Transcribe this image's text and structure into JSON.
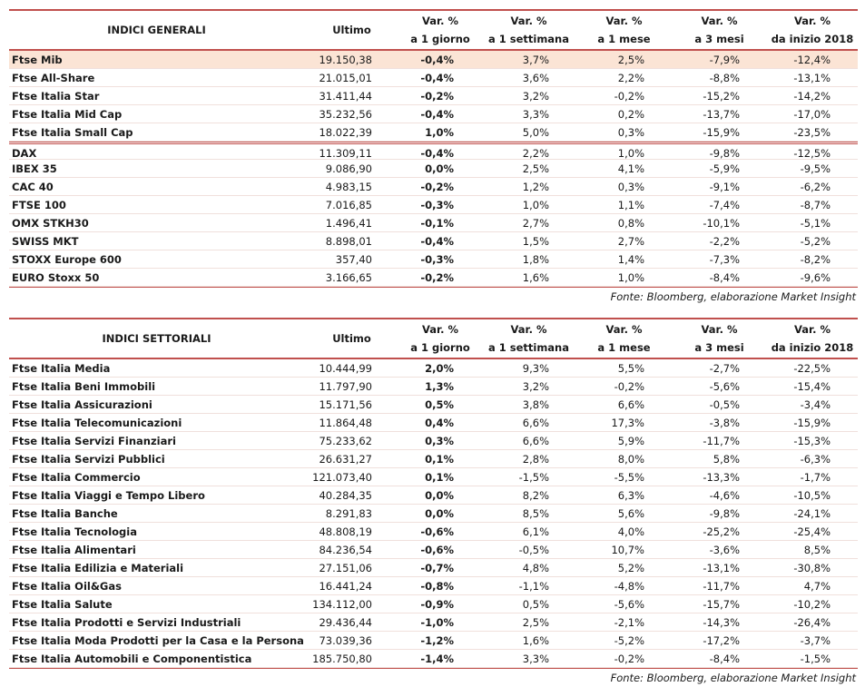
{
  "tables": [
    {
      "headers": [
        [
          "INDICI GENERALI"
        ],
        [
          "Ultimo"
        ],
        [
          "Var. %",
          "a 1 giorno"
        ],
        [
          "Var. %",
          "a 1 settimana"
        ],
        [
          "Var. %",
          "a 1 mese"
        ],
        [
          "Var. %",
          "a 3 mesi"
        ],
        [
          "Var. %",
          "da inizio 2018"
        ]
      ],
      "groups": [
        [
          [
            "Ftse Mib",
            "19.150,38",
            "-0,4%",
            "3,7%",
            "2,5%",
            "-7,9%",
            "-12,4%"
          ]
        ],
        [
          [
            "Ftse All-Share",
            "21.015,01",
            "-0,4%",
            "3,6%",
            "2,2%",
            "-8,8%",
            "-13,1%"
          ],
          [
            "Ftse Italia Star",
            "31.411,44",
            "-0,2%",
            "3,2%",
            "-0,2%",
            "-15,2%",
            "-14,2%"
          ],
          [
            "Ftse Italia Mid Cap",
            "35.232,56",
            "-0,4%",
            "3,3%",
            "0,2%",
            "-13,7%",
            "-17,0%"
          ],
          [
            "Ftse Italia Small Cap",
            "18.022,39",
            "1,0%",
            "5,0%",
            "0,3%",
            "-15,9%",
            "-23,5%"
          ]
        ],
        [
          [
            "DAX",
            "11.309,11",
            "-0,4%",
            "2,2%",
            "1,0%",
            "-9,8%",
            "-12,5%"
          ],
          [
            "IBEX 35",
            "9.086,90",
            "0,0%",
            "2,5%",
            "4,1%",
            "-5,9%",
            "-9,5%"
          ],
          [
            "CAC 40",
            "4.983,15",
            "-0,2%",
            "1,2%",
            "0,3%",
            "-9,1%",
            "-6,2%"
          ],
          [
            "FTSE 100",
            "7.016,85",
            "-0,3%",
            "1,0%",
            "1,1%",
            "-7,4%",
            "-8,7%"
          ],
          [
            "OMX STKH30",
            "1.496,41",
            "-0,1%",
            "2,7%",
            "0,8%",
            "-10,1%",
            "-5,1%"
          ],
          [
            "SWISS MKT",
            "8.898,01",
            "-0,4%",
            "1,5%",
            "2,7%",
            "-2,2%",
            "-5,2%"
          ],
          [
            "STOXX Europe 600",
            "357,40",
            "-0,3%",
            "1,8%",
            "1,4%",
            "-7,3%",
            "-8,2%"
          ],
          [
            "EURO Stoxx 50",
            "3.166,65",
            "-0,2%",
            "1,6%",
            "1,0%",
            "-8,4%",
            "-9,6%"
          ]
        ]
      ],
      "source": "Fonte: Bloomberg, elaborazione Market Insight"
    },
    {
      "headers": [
        [
          "INDICI SETTORIALI"
        ],
        [
          "Ultimo"
        ],
        [
          "Var. %",
          "a 1 giorno"
        ],
        [
          "Var. %",
          "a 1 settimana"
        ],
        [
          "Var. %",
          "a 1 mese"
        ],
        [
          "Var. %",
          "a 3 mesi"
        ],
        [
          "Var. %",
          "da inizio 2018"
        ]
      ],
      "groups": [
        [
          [
            "Ftse Italia Media",
            "10.444,99",
            "2,0%",
            "9,3%",
            "5,5%",
            "-2,7%",
            "-22,5%"
          ],
          [
            "Ftse Italia Beni Immobili",
            "11.797,90",
            "1,3%",
            "3,2%",
            "-0,2%",
            "-5,6%",
            "-15,4%"
          ],
          [
            "Ftse Italia Assicurazioni",
            "15.171,56",
            "0,5%",
            "3,8%",
            "6,6%",
            "-0,5%",
            "-3,4%"
          ],
          [
            "Ftse Italia Telecomunicazioni",
            "11.864,48",
            "0,4%",
            "6,6%",
            "17,3%",
            "-3,8%",
            "-15,9%"
          ],
          [
            "Ftse Italia Servizi Finanziari",
            "75.233,62",
            "0,3%",
            "6,6%",
            "5,9%",
            "-11,7%",
            "-15,3%"
          ],
          [
            "Ftse Italia Servizi Pubblici",
            "26.631,27",
            "0,1%",
            "2,8%",
            "8,0%",
            "5,8%",
            "-6,3%"
          ],
          [
            "Ftse Italia Commercio",
            "121.073,40",
            "0,1%",
            "-1,5%",
            "-5,5%",
            "-13,3%",
            "-1,7%"
          ],
          [
            "Ftse Italia Viaggi e Tempo Libero",
            "40.284,35",
            "0,0%",
            "8,2%",
            "6,3%",
            "-4,6%",
            "-10,5%"
          ],
          [
            "Ftse Italia Banche",
            "8.291,83",
            "0,0%",
            "8,5%",
            "5,6%",
            "-9,8%",
            "-24,1%"
          ],
          [
            "Ftse Italia Tecnologia",
            "48.808,19",
            "-0,6%",
            "6,1%",
            "4,0%",
            "-25,2%",
            "-25,4%"
          ],
          [
            "Ftse Italia Alimentari",
            "84.236,54",
            "-0,6%",
            "-0,5%",
            "10,7%",
            "-3,6%",
            "8,5%"
          ],
          [
            "Ftse Italia Edilizia e Materiali",
            "27.151,06",
            "-0,7%",
            "4,8%",
            "5,2%",
            "-13,1%",
            "-30,8%"
          ],
          [
            "Ftse Italia Oil&Gas",
            "16.441,24",
            "-0,8%",
            "-1,1%",
            "-4,8%",
            "-11,7%",
            "4,7%"
          ],
          [
            "Ftse Italia Salute",
            "134.112,00",
            "-0,9%",
            "0,5%",
            "-5,6%",
            "-15,7%",
            "-10,2%"
          ],
          [
            "Ftse Italia Prodotti e Servizi Industriali",
            "29.436,44",
            "-1,0%",
            "2,5%",
            "-2,1%",
            "-14,3%",
            "-26,4%"
          ],
          [
            "Ftse Italia Moda Prodotti per la Casa e la Persona",
            "73.039,36",
            "-1,2%",
            "1,6%",
            "-5,2%",
            "-17,2%",
            "-3,7%"
          ],
          [
            "Ftse Italia Automobili e Componentistica",
            "185.750,80",
            "-1,4%",
            "3,3%",
            "-0,2%",
            "-8,4%",
            "-1,5%"
          ]
        ]
      ],
      "source": "Fonte: Bloomberg, elaborazione Market Insight"
    }
  ]
}
